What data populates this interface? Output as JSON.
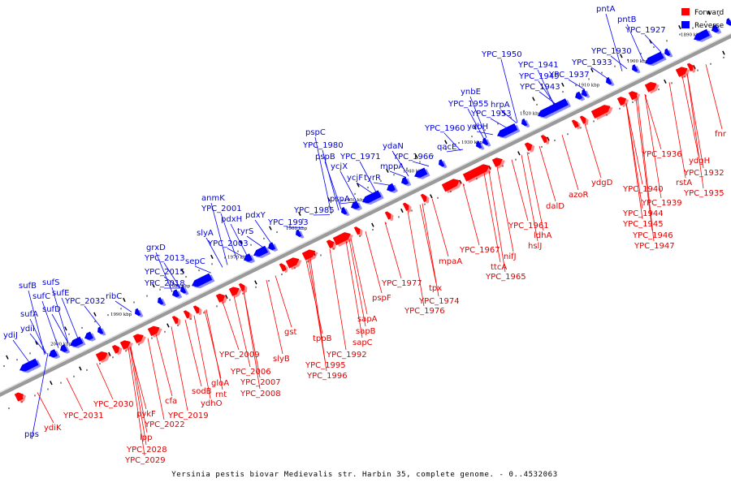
{
  "caption": "Yersinia pestis biovar Medievalis str. Harbin 35, complete genome. - 0..4532063",
  "legend": {
    "forward_label": "Forward",
    "reverse_label": "Reverse",
    "forward_color": "#ff0000",
    "reverse_color": "#0000ff"
  },
  "ticks": [
    "2000 kbp",
    "1990 kbp",
    "1980 kbp",
    "1970 kbp",
    "1960 kbp",
    "1950 kbp",
    "1940 kbp",
    "1930 kbp",
    "1920 kbp",
    "1910 kbp",
    "1900 kbp",
    "1890 kbp"
  ],
  "reverse_genes": [
    "pps",
    "ydiJ",
    "ydiI",
    "sufA",
    "sufB",
    "sufC",
    "sufD",
    "sufS",
    "sufE",
    "YPC_2032",
    "ribC",
    "YPC_2018",
    "YPC_2015",
    "YPC_2013",
    "grxD",
    "sepC",
    "slyA",
    "YPC_2003",
    "anmK",
    "YPC_2001",
    "pdxH",
    "tyrS",
    "pdxY",
    "YPC_1993",
    "YPC_1985",
    "pspA",
    "pspB",
    "pspC",
    "YPC_1980",
    "ycjX",
    "ycjF",
    "YPC_1971",
    "tyrR",
    "mppA",
    "ydaN",
    "YPC_1966",
    "qacE",
    "YPC_1960",
    "ydbH",
    "YPC_1953",
    "YPC_1955",
    "ynbE",
    "hrpA",
    "YPC_1943",
    "YPC_1949",
    "YPC_1950",
    "YPC_1941",
    "YPC_1937",
    "YPC_1933",
    "YPC_1930",
    "YPC_1927",
    "pntB",
    "pntA"
  ],
  "forward_genes": [
    "ydiK",
    "YPC_2031",
    "YPC_2030",
    "pykF",
    "lpp",
    "YPC_2028",
    "YPC_2029",
    "YPC_2022",
    "cfa",
    "YPC_2019",
    "sodB",
    "ydhO",
    "rnt",
    "gloA",
    "YPC_2009",
    "YPC_2006",
    "YPC_2007",
    "YPC_2008",
    "slyB",
    "gst",
    "tppB",
    "YPC_1995",
    "YPC_1996",
    "YPC_1992",
    "sapB",
    "sapC",
    "sapA",
    "pspF",
    "YPC_1977",
    "tpx",
    "YPC_1974",
    "YPC_1976",
    "mpaA",
    "YPC_1967",
    "ttcA",
    "YPC_1965",
    "nifJ",
    "hslJ",
    "ldhA",
    "YPC_1961",
    "dalD",
    "azoR",
    "ydgD",
    "YPC_1940",
    "YPC_1944",
    "YPC_1945",
    "YPC_1946",
    "YPC_1947",
    "YPC_1939",
    "YPC_1936",
    "rstA",
    "YPC_1935",
    "ydgH",
    "YPC_1932",
    "fnr"
  ]
}
